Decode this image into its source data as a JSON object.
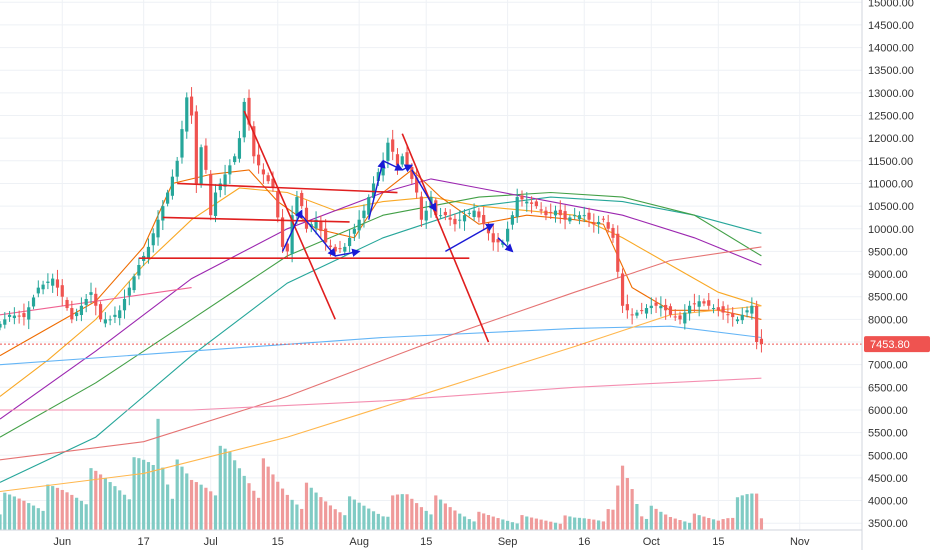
{
  "chart_data": {
    "type": "candlestick",
    "instrument": "",
    "y_axis": {
      "scale": "linear",
      "range": [
        3350,
        15050
      ],
      "ticks": [
        "3500.00",
        "4000.00",
        "4500.00",
        "5000.00",
        "5500.00",
        "6000.00",
        "6500.00",
        "7000.00",
        "7500.00",
        "8000.00",
        "8500.00",
        "9000.00",
        "9500.00",
        "10000.00",
        "10500.00",
        "11000.00",
        "11500.00",
        "12000.00",
        "12500.00",
        "13000.00",
        "13500.00",
        "14000.00",
        "14500.00",
        "15000.00"
      ],
      "tick_values": [
        3500,
        4000,
        4500,
        5000,
        5500,
        6000,
        6500,
        7000,
        7500,
        8000,
        8500,
        9000,
        9500,
        10000,
        10500,
        11000,
        11500,
        12000,
        12500,
        13000,
        13500,
        14000,
        14500,
        15000
      ],
      "position": "right"
    },
    "x_axis": {
      "range_index": [
        0,
        180
      ],
      "labels": [
        {
          "text": "Jun",
          "index": 13
        },
        {
          "text": "17",
          "index": 30
        },
        {
          "text": "Jul",
          "index": 44
        },
        {
          "text": "15",
          "index": 58
        },
        {
          "text": "Aug",
          "index": 75
        },
        {
          "text": "15",
          "index": 89
        },
        {
          "text": "Sep",
          "index": 106
        },
        {
          "text": "16",
          "index": 122
        },
        {
          "text": "Oct",
          "index": 136
        },
        {
          "text": "15",
          "index": 150
        },
        {
          "text": "Nov",
          "index": 167
        }
      ]
    },
    "grid": true,
    "last_price": {
      "value": 7453.8,
      "label": "7453.80",
      "color": "#ef5350"
    },
    "colors": {
      "up": "#26a69a",
      "down": "#ef5350",
      "up_volume": "#80cbc4",
      "down_volume": "#ef9a9a",
      "trend_lines": "#e01e1e",
      "arrows": "#1a1ad6"
    },
    "candle_keypoints": [
      [
        0,
        7900
      ],
      [
        2,
        8100
      ],
      [
        5,
        8050
      ],
      [
        8,
        8700
      ],
      [
        11,
        8900
      ],
      [
        13,
        8500
      ],
      [
        15,
        8000
      ],
      [
        17,
        8300
      ],
      [
        19,
        8600
      ],
      [
        21,
        8000
      ],
      [
        23,
        8000
      ],
      [
        25,
        8200
      ],
      [
        27,
        8700
      ],
      [
        29,
        9200
      ],
      [
        31,
        9600
      ],
      [
        33,
        10200
      ],
      [
        35,
        10800
      ],
      [
        37,
        11500
      ],
      [
        39,
        12900
      ],
      [
        40,
        12500
      ],
      [
        41,
        11000
      ],
      [
        42,
        11800
      ],
      [
        43,
        11300
      ],
      [
        44,
        10300
      ],
      [
        45,
        10800
      ],
      [
        47,
        11200
      ],
      [
        49,
        11600
      ],
      [
        50,
        12000
      ],
      [
        51,
        12800
      ],
      [
        52,
        12300
      ],
      [
        53,
        11600
      ],
      [
        55,
        11200
      ],
      [
        57,
        10900
      ],
      [
        59,
        9600
      ],
      [
        60,
        9500
      ],
      [
        61,
        10300
      ],
      [
        62,
        10700
      ],
      [
        63,
        10500
      ],
      [
        64,
        10000
      ],
      [
        66,
        10200
      ],
      [
        68,
        9700
      ],
      [
        70,
        9500
      ],
      [
        72,
        9600
      ],
      [
        74,
        10000
      ],
      [
        76,
        10400
      ],
      [
        78,
        11000
      ],
      [
        80,
        11500
      ],
      [
        81,
        11900
      ],
      [
        82,
        11700
      ],
      [
        83,
        11400
      ],
      [
        84,
        11600
      ],
      [
        85,
        11400
      ],
      [
        86,
        11100
      ],
      [
        87,
        10800
      ],
      [
        88,
        10200
      ],
      [
        89,
        10400
      ],
      [
        90,
        10700
      ],
      [
        91,
        10300
      ],
      [
        93,
        10300
      ],
      [
        95,
        10100
      ],
      [
        97,
        10300
      ],
      [
        99,
        10400
      ],
      [
        101,
        10100
      ],
      [
        103,
        9700
      ],
      [
        105,
        9700
      ],
      [
        107,
        10300
      ],
      [
        108,
        10700
      ],
      [
        110,
        10600
      ],
      [
        112,
        10500
      ],
      [
        114,
        10300
      ],
      [
        116,
        10400
      ],
      [
        118,
        10200
      ],
      [
        120,
        10300
      ],
      [
        122,
        10300
      ],
      [
        124,
        10100
      ],
      [
        126,
        10200
      ],
      [
        128,
        9800
      ],
      [
        130,
        8300
      ],
      [
        132,
        8100
      ],
      [
        134,
        8200
      ],
      [
        136,
        8300
      ],
      [
        138,
        8300
      ],
      [
        140,
        8100
      ],
      [
        142,
        8000
      ],
      [
        144,
        8300
      ],
      [
        146,
        8400
      ],
      [
        148,
        8300
      ],
      [
        150,
        8200
      ],
      [
        152,
        8100
      ],
      [
        154,
        8000
      ],
      [
        156,
        8200
      ],
      [
        157,
        8300
      ],
      [
        158,
        7500
      ],
      [
        159,
        7453.8
      ]
    ],
    "volume_keypoints": [
      [
        0,
        0.2
      ],
      [
        10,
        0.25
      ],
      [
        20,
        0.35
      ],
      [
        28,
        0.4
      ],
      [
        32,
        0.5
      ],
      [
        33,
        0.95
      ],
      [
        34,
        0.6
      ],
      [
        36,
        0.4
      ],
      [
        40,
        0.35
      ],
      [
        48,
        0.5
      ],
      [
        52,
        0.45
      ],
      [
        60,
        0.3
      ],
      [
        70,
        0.2
      ],
      [
        80,
        0.15
      ],
      [
        85,
        0.25
      ],
      [
        90,
        0.2
      ],
      [
        100,
        0.1
      ],
      [
        110,
        0.08
      ],
      [
        120,
        0.08
      ],
      [
        128,
        0.12
      ],
      [
        130,
        0.45
      ],
      [
        132,
        0.35
      ],
      [
        134,
        0.15
      ],
      [
        140,
        0.1
      ],
      [
        150,
        0.08
      ],
      [
        158,
        0.28
      ],
      [
        159,
        0.1
      ]
    ],
    "moving_averages": [
      {
        "color": "#f9a825",
        "points": [
          [
            0,
            6300
          ],
          [
            10,
            7100
          ],
          [
            20,
            8000
          ],
          [
            30,
            9200
          ],
          [
            40,
            10200
          ],
          [
            50,
            10900
          ],
          [
            60,
            10800
          ],
          [
            70,
            10400
          ],
          [
            80,
            10600
          ],
          [
            90,
            10700
          ],
          [
            100,
            10500
          ],
          [
            110,
            10400
          ],
          [
            120,
            10300
          ],
          [
            130,
            9800
          ],
          [
            140,
            9200
          ],
          [
            150,
            8600
          ],
          [
            159,
            8300
          ]
        ]
      },
      {
        "color": "#ef6c00",
        "points": [
          [
            0,
            7200
          ],
          [
            10,
            7800
          ],
          [
            20,
            8400
          ],
          [
            30,
            9600
          ],
          [
            36,
            11000
          ],
          [
            44,
            11200
          ],
          [
            52,
            11300
          ],
          [
            58,
            10600
          ],
          [
            66,
            10000
          ],
          [
            74,
            9800
          ],
          [
            80,
            10800
          ],
          [
            86,
            11300
          ],
          [
            92,
            10700
          ],
          [
            100,
            10100
          ],
          [
            110,
            10300
          ],
          [
            120,
            10200
          ],
          [
            126,
            10100
          ],
          [
            132,
            8700
          ],
          [
            140,
            8200
          ],
          [
            150,
            8200
          ],
          [
            159,
            8000
          ]
        ]
      },
      {
        "color": "#26a69a",
        "points": [
          [
            0,
            4400
          ],
          [
            20,
            5400
          ],
          [
            40,
            7200
          ],
          [
            60,
            8800
          ],
          [
            80,
            9800
          ],
          [
            100,
            10500
          ],
          [
            115,
            10700
          ],
          [
            130,
            10600
          ],
          [
            145,
            10300
          ],
          [
            159,
            9900
          ]
        ]
      },
      {
        "color": "#43a047",
        "points": [
          [
            0,
            5400
          ],
          [
            20,
            6600
          ],
          [
            40,
            8000
          ],
          [
            60,
            9400
          ],
          [
            80,
            10300
          ],
          [
            100,
            10700
          ],
          [
            115,
            10800
          ],
          [
            130,
            10700
          ],
          [
            145,
            10300
          ],
          [
            159,
            9400
          ]
        ]
      },
      {
        "color": "#9c27b0",
        "points": [
          [
            0,
            5800
          ],
          [
            20,
            7300
          ],
          [
            40,
            8900
          ],
          [
            60,
            10000
          ],
          [
            80,
            10800
          ],
          [
            90,
            11100
          ],
          [
            100,
            10900
          ],
          [
            115,
            10600
          ],
          [
            130,
            10300
          ],
          [
            145,
            9800
          ],
          [
            159,
            9200
          ]
        ]
      },
      {
        "color": "#64b5f6",
        "points": [
          [
            0,
            7000
          ],
          [
            40,
            7300
          ],
          [
            80,
            7600
          ],
          [
            120,
            7800
          ],
          [
            140,
            7850
          ],
          [
            159,
            7600
          ]
        ]
      },
      {
        "color": "#ffb74d",
        "points": [
          [
            0,
            4200
          ],
          [
            30,
            4600
          ],
          [
            60,
            5400
          ],
          [
            90,
            6400
          ],
          [
            120,
            7400
          ],
          [
            140,
            8100
          ],
          [
            159,
            8300
          ]
        ]
      },
      {
        "color": "#e57373",
        "points": [
          [
            0,
            4900
          ],
          [
            30,
            5300
          ],
          [
            60,
            6300
          ],
          [
            90,
            7500
          ],
          [
            120,
            8600
          ],
          [
            140,
            9300
          ],
          [
            159,
            9600
          ]
        ]
      },
      {
        "color": "#f48fb1",
        "points": [
          [
            0,
            6000
          ],
          [
            40,
            6000
          ],
          [
            80,
            6200
          ],
          [
            120,
            6500
          ],
          [
            159,
            6700
          ]
        ]
      },
      {
        "color": "#f06292",
        "points": [
          [
            0,
            8100
          ],
          [
            20,
            8400
          ],
          [
            40,
            8700
          ]
        ]
      }
    ],
    "trend_lines": [
      [
        [
          37,
          11000
        ],
        [
          83,
          10800
        ]
      ],
      [
        [
          34,
          10250
        ],
        [
          73,
          10150
        ]
      ],
      [
        [
          29,
          9350
        ],
        [
          98,
          9350
        ]
      ],
      [
        [
          51,
          12600
        ],
        [
          70,
          8000
        ]
      ],
      [
        [
          84,
          12100
        ],
        [
          102,
          7500
        ]
      ]
    ],
    "arrows": [
      [
        [
          59,
          9500
        ],
        [
          63,
          10400
        ]
      ],
      [
        [
          63,
          10300
        ],
        [
          70,
          9400
        ]
      ],
      [
        [
          70,
          9400
        ],
        [
          75,
          9500
        ]
      ],
      [
        [
          77,
          10200
        ],
        [
          80,
          11500
        ]
      ],
      [
        [
          80,
          11500
        ],
        [
          84,
          11300
        ]
      ],
      [
        [
          84,
          11300
        ],
        [
          86,
          11400
        ]
      ],
      [
        [
          86,
          11300
        ],
        [
          91,
          10400
        ]
      ],
      [
        [
          93,
          9500
        ],
        [
          103,
          10100
        ]
      ],
      [
        [
          104,
          9800
        ],
        [
          107,
          9500
        ]
      ]
    ]
  }
}
